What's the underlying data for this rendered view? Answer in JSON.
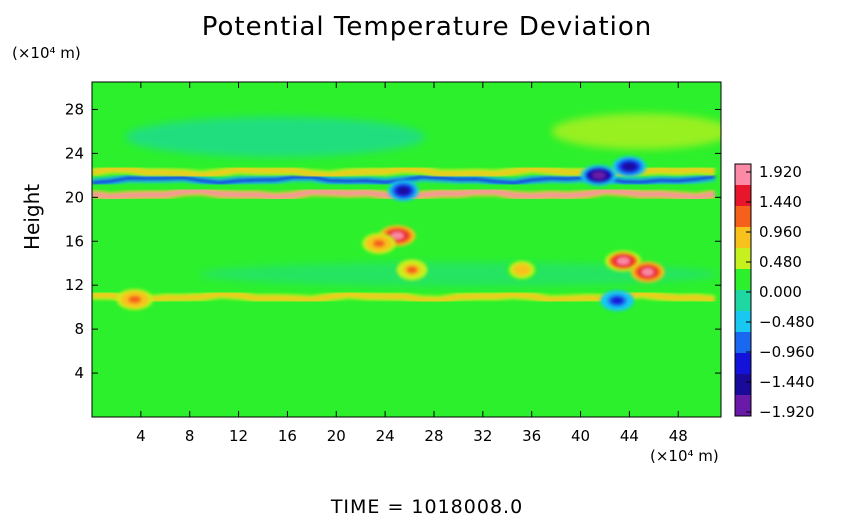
{
  "chart_data": {
    "type": "heatmap",
    "title": "Potential Temperature Deviation",
    "ylabel": "Height",
    "x_unit": "(×10⁴ m)",
    "y_unit": "(×10⁴ m)",
    "x_ticks": [
      4,
      8,
      12,
      16,
      20,
      24,
      28,
      32,
      36,
      40,
      44,
      48
    ],
    "y_ticks": [
      4,
      8,
      12,
      16,
      20,
      24,
      28
    ],
    "xlim": [
      0,
      51.5
    ],
    "ylim": [
      0,
      30.5
    ],
    "colorbar": {
      "ticks": [
        "1.920",
        "1.440",
        "0.960",
        "0.480",
        "0.000",
        "−0.480",
        "−0.960",
        "−1.440",
        "−1.920"
      ],
      "range": [
        -1.92,
        1.92
      ],
      "colors": [
        "#fb8aa6",
        "#e8162a",
        "#f5601a",
        "#f7c21c",
        "#c6f01e",
        "#2cf02c",
        "#1ed7a2",
        "#19c8f0",
        "#1a68f2",
        "#1212d8",
        "#1a0a9a",
        "#6a1aa8"
      ]
    },
    "footer": "TIME  =  1018008.0",
    "field_description_values": {
      "background": 0.15,
      "bands": [
        {
          "y": 20.3,
          "amplitude": 1.6
        },
        {
          "y": 21.6,
          "amplitude": -1.0
        },
        {
          "y": 22.3,
          "amplitude": 0.9
        },
        {
          "y": 10.9,
          "amplitude": 0.7
        }
      ],
      "features": [
        {
          "x": 25.0,
          "y": 16.5,
          "value": 1.9
        },
        {
          "x": 23.5,
          "y": 15.8,
          "value": 1.2
        },
        {
          "x": 26.2,
          "y": 13.4,
          "value": 1.0
        },
        {
          "x": 43.5,
          "y": 14.2,
          "value": 1.8
        },
        {
          "x": 45.5,
          "y": 13.2,
          "value": 1.9
        },
        {
          "x": 35.2,
          "y": 13.4,
          "value": 0.9
        },
        {
          "x": 41.5,
          "y": 22.0,
          "value": -1.6
        },
        {
          "x": 44.0,
          "y": 22.8,
          "value": -1.4
        },
        {
          "x": 25.5,
          "y": 20.6,
          "value": -1.5
        },
        {
          "x": 3.5,
          "y": 10.7,
          "value": 1.2
        },
        {
          "x": 43.0,
          "y": 10.6,
          "value": -1.0
        }
      ]
    }
  }
}
